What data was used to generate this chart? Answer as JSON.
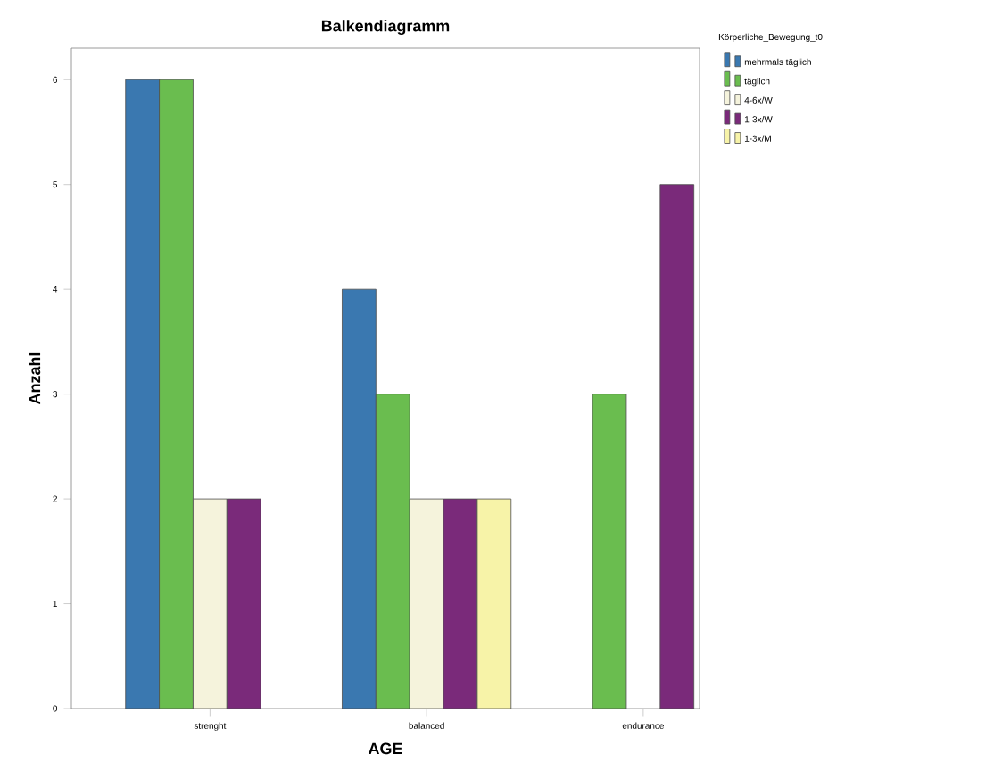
{
  "chart_data": {
    "type": "bar",
    "title": "Balkendiagramm",
    "xlabel": "AGE",
    "ylabel": "Anzahl",
    "legend_title": "Körperliche_Bewegung_t0",
    "categories": [
      "strenght",
      "balanced",
      "endurance"
    ],
    "series": [
      {
        "name": "mehrmals täglich",
        "color": "#3a78b0",
        "values": [
          6,
          4,
          null
        ]
      },
      {
        "name": "täglich",
        "color": "#6abd4f",
        "values": [
          6,
          3,
          3
        ]
      },
      {
        "name": "4-6x/W",
        "color": "#f5f3dc",
        "values": [
          2,
          2,
          null
        ]
      },
      {
        "name": "1-3x/W",
        "color": "#7a2a7a",
        "values": [
          2,
          2,
          5
        ]
      },
      {
        "name": "1-3x/M",
        "color": "#f7f3a8",
        "values": [
          null,
          2,
          null
        ]
      }
    ],
    "ylim": [
      0,
      6.3
    ],
    "yticks": [
      0,
      1,
      2,
      3,
      4,
      5,
      6
    ],
    "grid": false,
    "legend": "top right"
  }
}
